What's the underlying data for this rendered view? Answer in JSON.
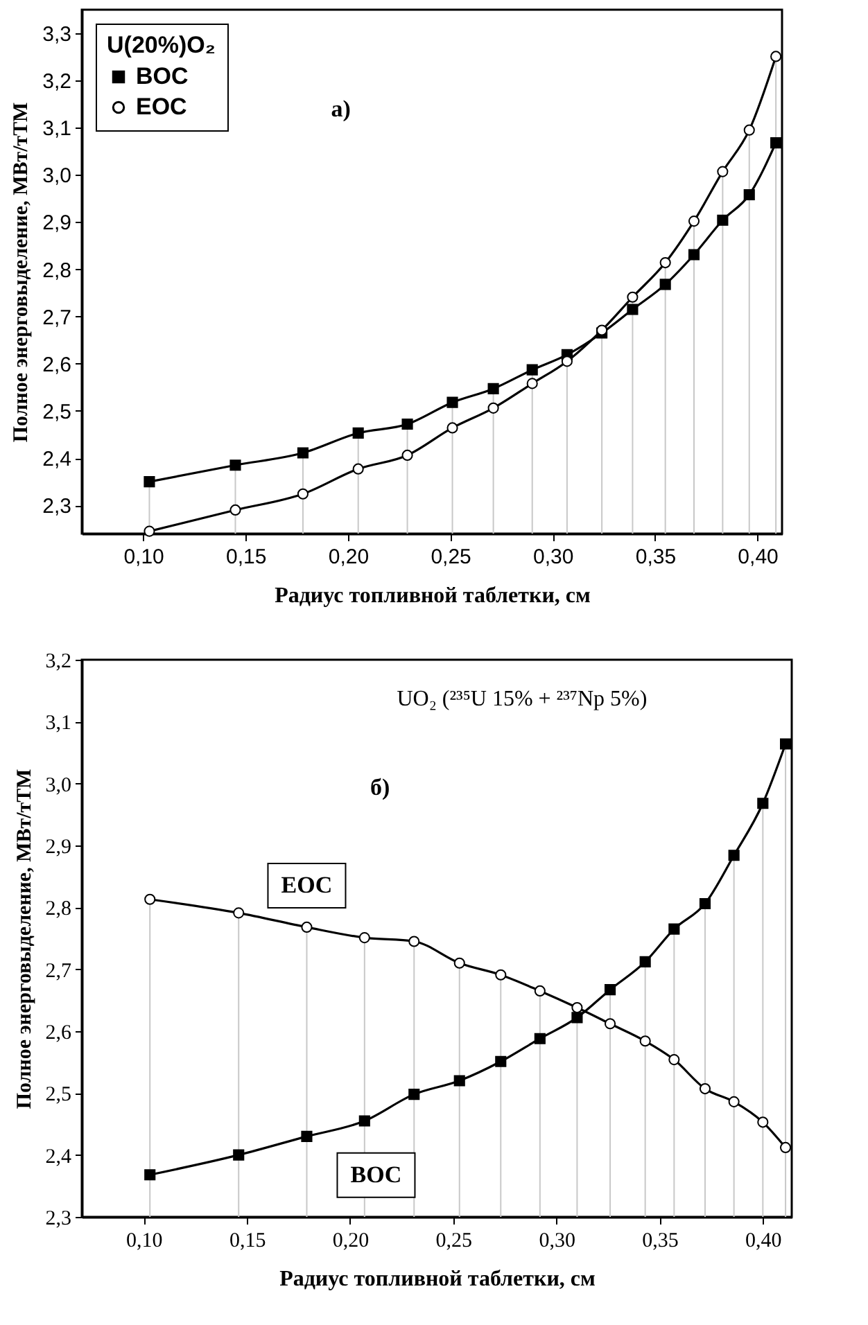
{
  "chart_data": [
    {
      "type": "line",
      "xlabel": "Радиус топливной таблетки, см",
      "ylabel": "Полное энерговыделение, МВт/тТМ",
      "legend_title": "U(20%)O₂",
      "legend": "top left",
      "annotations": [
        "a)"
      ],
      "x": [
        0.103,
        0.145,
        0.178,
        0.205,
        0.229,
        0.251,
        0.271,
        0.29,
        0.307,
        0.324,
        0.339,
        0.355,
        0.369,
        0.383,
        0.396,
        0.409
      ],
      "series": [
        {
          "name": "BOC",
          "color": "#000000",
          "marker": "square",
          "values": [
            2.35,
            2.385,
            2.411,
            2.453,
            2.472,
            2.518,
            2.547,
            2.587,
            2.619,
            2.665,
            2.715,
            2.768,
            2.831,
            2.904,
            2.958,
            3.068
          ]
        },
        {
          "name": "EOC",
          "color": "#000000",
          "marker": "circle",
          "values": [
            2.245,
            2.29,
            2.324,
            2.377,
            2.406,
            2.464,
            2.506,
            2.558,
            2.605,
            2.671,
            2.741,
            2.814,
            2.902,
            3.007,
            3.095,
            3.251
          ]
        }
      ],
      "xlim": [
        0.07,
        0.412
      ],
      "ylim": [
        2.24,
        3.35
      ],
      "xticks": [
        {
          "value": 0.1,
          "label": "0,10"
        },
        {
          "value": 0.15,
          "label": "0,15"
        },
        {
          "value": 0.2,
          "label": "0,20"
        },
        {
          "value": 0.25,
          "label": "0,25"
        },
        {
          "value": 0.3,
          "label": "0,30"
        },
        {
          "value": 0.35,
          "label": "0,35"
        },
        {
          "value": 0.4,
          "label": "0,40"
        }
      ],
      "yticks": [
        {
          "value": 2.3,
          "label": "2,3"
        },
        {
          "value": 2.4,
          "label": "2,4"
        },
        {
          "value": 2.5,
          "label": "2,5"
        },
        {
          "value": 2.6,
          "label": "2,6"
        },
        {
          "value": 2.7,
          "label": "2,7"
        },
        {
          "value": 2.8,
          "label": "2,8"
        },
        {
          "value": 2.9,
          "label": "2,9"
        },
        {
          "value": 3.0,
          "label": "3,0"
        },
        {
          "value": 3.1,
          "label": "3,1"
        },
        {
          "value": 3.2,
          "label": "3,2"
        },
        {
          "value": 3.3,
          "label": "3,3"
        }
      ],
      "ref_lines": [
        {
          "axis": "x",
          "value": 0.103,
          "color": "#c8c8c8"
        },
        {
          "axis": "x",
          "value": 0.145,
          "color": "#c8c8c8"
        },
        {
          "axis": "x",
          "value": 0.178,
          "color": "#c8c8c8"
        },
        {
          "axis": "x",
          "value": 0.205,
          "color": "#c8c8c8"
        },
        {
          "axis": "x",
          "value": 0.229,
          "color": "#c8c8c8"
        },
        {
          "axis": "x",
          "value": 0.251,
          "color": "#c8c8c8"
        },
        {
          "axis": "x",
          "value": 0.271,
          "color": "#c8c8c8"
        },
        {
          "axis": "x",
          "value": 0.29,
          "color": "#c8c8c8"
        },
        {
          "axis": "x",
          "value": 0.307,
          "color": "#c8c8c8"
        },
        {
          "axis": "x",
          "value": 0.324,
          "color": "#c8c8c8"
        },
        {
          "axis": "x",
          "value": 0.339,
          "color": "#c8c8c8"
        },
        {
          "axis": "x",
          "value": 0.355,
          "color": "#c8c8c8"
        },
        {
          "axis": "x",
          "value": 0.369,
          "color": "#c8c8c8"
        },
        {
          "axis": "x",
          "value": 0.383,
          "color": "#c8c8c8"
        },
        {
          "axis": "x",
          "value": 0.396,
          "color": "#c8c8c8"
        },
        {
          "axis": "x",
          "value": 0.409,
          "color": "#c8c8c8"
        }
      ],
      "line_style": "solid",
      "grid": false
    },
    {
      "type": "line",
      "xlabel": "Радиус топливной таблетки, см",
      "ylabel": "Полное энерговыделение, МВт/тТМ",
      "legend": false,
      "annotations": [
        "UO₂ (²³⁵U 15% + ²³⁷Np 5%)",
        "б)"
      ],
      "x": [
        0.103,
        0.146,
        0.179,
        0.207,
        0.231,
        0.253,
        0.273,
        0.292,
        0.31,
        0.326,
        0.343,
        0.357,
        0.372,
        0.386,
        0.4,
        0.411
      ],
      "series": [
        {
          "name": "EOC",
          "color": "#000000",
          "marker": "circle",
          "values": [
            2.813,
            2.791,
            2.768,
            2.751,
            2.745,
            2.71,
            2.691,
            2.665,
            2.638,
            2.612,
            2.584,
            2.554,
            2.507,
            2.486,
            2.453,
            2.412
          ]
        },
        {
          "name": "BOC",
          "color": "#000000",
          "marker": "square",
          "values": [
            2.368,
            2.4,
            2.43,
            2.455,
            2.498,
            2.52,
            2.551,
            2.588,
            2.622,
            2.667,
            2.712,
            2.765,
            2.806,
            2.884,
            2.968,
            3.064
          ]
        }
      ],
      "xlim": [
        0.07,
        0.414
      ],
      "ylim": [
        2.3,
        3.2
      ],
      "xticks": [
        {
          "value": 0.1,
          "label": "0,10"
        },
        {
          "value": 0.15,
          "label": "0,15"
        },
        {
          "value": 0.2,
          "label": "0,20"
        },
        {
          "value": 0.25,
          "label": "0,25"
        },
        {
          "value": 0.3,
          "label": "0,30"
        },
        {
          "value": 0.35,
          "label": "0,35"
        },
        {
          "value": 0.4,
          "label": "0,40"
        }
      ],
      "yticks": [
        {
          "value": 2.3,
          "label": "2,3"
        },
        {
          "value": 2.4,
          "label": "2,4"
        },
        {
          "value": 2.5,
          "label": "2,5"
        },
        {
          "value": 2.6,
          "label": "2,6"
        },
        {
          "value": 2.7,
          "label": "2,7"
        },
        {
          "value": 2.8,
          "label": "2,8"
        },
        {
          "value": 2.9,
          "label": "2,9"
        },
        {
          "value": 3.0,
          "label": "3,0"
        },
        {
          "value": 3.1,
          "label": "3,1"
        },
        {
          "value": 3.2,
          "label": "3,2"
        }
      ],
      "ref_lines": [
        {
          "axis": "x",
          "value": 0.103,
          "color": "#c8c8c8"
        },
        {
          "axis": "x",
          "value": 0.146,
          "color": "#c8c8c8"
        },
        {
          "axis": "x",
          "value": 0.179,
          "color": "#c8c8c8"
        },
        {
          "axis": "x",
          "value": 0.207,
          "color": "#c8c8c8"
        },
        {
          "axis": "x",
          "value": 0.231,
          "color": "#c8c8c8"
        },
        {
          "axis": "x",
          "value": 0.253,
          "color": "#c8c8c8"
        },
        {
          "axis": "x",
          "value": 0.273,
          "color": "#c8c8c8"
        },
        {
          "axis": "x",
          "value": 0.292,
          "color": "#c8c8c8"
        },
        {
          "axis": "x",
          "value": 0.31,
          "color": "#c8c8c8"
        },
        {
          "axis": "x",
          "value": 0.326,
          "color": "#c8c8c8"
        },
        {
          "axis": "x",
          "value": 0.343,
          "color": "#c8c8c8"
        },
        {
          "axis": "x",
          "value": 0.357,
          "color": "#c8c8c8"
        },
        {
          "axis": "x",
          "value": 0.372,
          "color": "#c8c8c8"
        },
        {
          "axis": "x",
          "value": 0.386,
          "color": "#c8c8c8"
        },
        {
          "axis": "x",
          "value": 0.4,
          "color": "#c8c8c8"
        },
        {
          "axis": "x",
          "value": 0.411,
          "color": "#c8c8c8"
        }
      ],
      "line_style": "solid",
      "grid": false
    }
  ]
}
